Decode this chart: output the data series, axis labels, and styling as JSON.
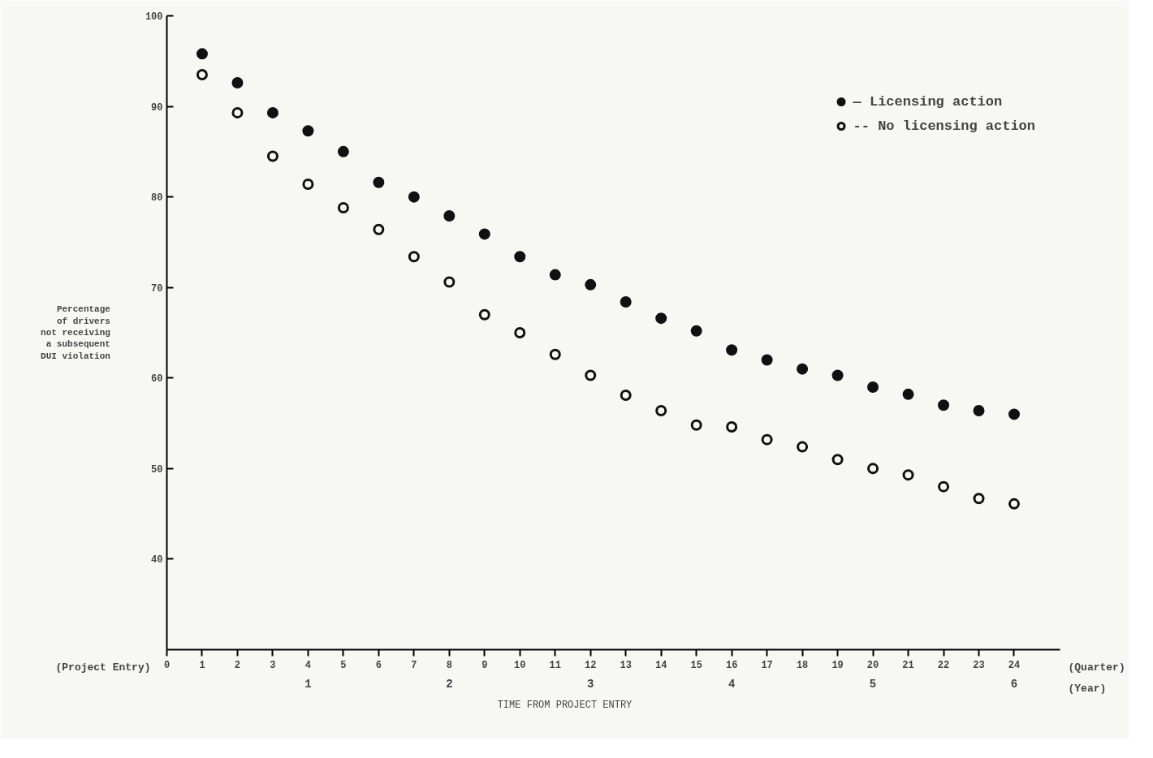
{
  "chart_data": {
    "type": "scatter",
    "xlabel": "TIME FROM PROJECT ENTRY",
    "ylabel": "Percentage\nof drivers\nnot receiving\na subsequent\nDUI violation",
    "x": [
      1,
      2,
      3,
      4,
      5,
      6,
      7,
      8,
      9,
      10,
      11,
      12,
      13,
      14,
      15,
      16,
      17,
      18,
      19,
      20,
      21,
      22,
      23,
      24
    ],
    "series": [
      {
        "name": "— Licensing action",
        "color": "#111111",
        "values": [
          95.8,
          92.6,
          89.3,
          87.3,
          85.0,
          81.6,
          80.0,
          77.9,
          75.9,
          73.4,
          71.4,
          70.3,
          68.4,
          66.6,
          65.2,
          63.1,
          62.0,
          61.0,
          60.3,
          59.0,
          58.2,
          57.0,
          56.4,
          56.0
        ]
      },
      {
        "name": "-- No licensing action",
        "color": "#111111",
        "values": [
          93.5,
          89.3,
          84.5,
          81.4,
          78.8,
          76.4,
          73.4,
          70.6,
          67.0,
          65.0,
          62.6,
          60.3,
          58.1,
          56.4,
          54.8,
          54.6,
          53.2,
          52.4,
          51.0,
          50.0,
          49.3,
          48.0,
          46.7,
          46.1
        ]
      }
    ],
    "xlim": [
      0,
      25.3
    ],
    "xticks": [
      0,
      1,
      2,
      3,
      4,
      5,
      6,
      7,
      8,
      9,
      10,
      11,
      12,
      13,
      14,
      15,
      16,
      17,
      18,
      19,
      20,
      21,
      22,
      23,
      24
    ],
    "x2lim": [
      0,
      6.325
    ],
    "x2ticks": [
      1,
      2,
      3,
      4,
      5,
      6
    ],
    "ylim": [
      30,
      100
    ],
    "yticks": [
      40,
      50,
      60,
      70,
      80,
      90,
      100
    ],
    "annotations": [
      "(Project Entry)",
      "(Quarter)",
      "(Year)"
    ],
    "grid": false,
    "legend": "top right",
    "marker": "circle"
  }
}
